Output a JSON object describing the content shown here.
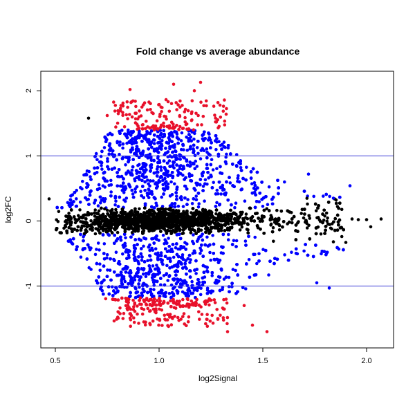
{
  "chart_data": {
    "type": "scatter",
    "title": "Fold change vs average abundance",
    "xlabel": "log2Signal",
    "ylabel": "log2FC",
    "xlim": [
      0.43,
      2.13
    ],
    "ylim": [
      -1.95,
      2.3
    ],
    "x_ticks": [
      0.5,
      1.0,
      1.5,
      2.0
    ],
    "x_tick_labels": [
      "0.5",
      "1.0",
      "1.5",
      "2.0"
    ],
    "y_ticks": [
      -1,
      0,
      1,
      2
    ],
    "y_tick_labels": [
      "-1",
      "0",
      "1",
      "2"
    ],
    "grid": false,
    "reference_lines": [
      {
        "axis": "y",
        "value": 1,
        "color": "#3a3ad6"
      },
      {
        "axis": "y",
        "value": -1,
        "color": "#3a3ad6"
      }
    ],
    "series_colors": {
      "unchanged": "#000000",
      "moderate": "#0000ff",
      "strong": "#e8102a"
    },
    "outliers": [
      {
        "x": 0.66,
        "y": 1.58,
        "group": "unchanged"
      },
      {
        "x": 0.47,
        "y": 0.34,
        "group": "unchanged"
      },
      {
        "x": 2.07,
        "y": 0.03,
        "group": "unchanged"
      },
      {
        "x": 2.0,
        "y": 0.02,
        "group": "unchanged"
      },
      {
        "x": 2.02,
        "y": -0.09,
        "group": "unchanged"
      },
      {
        "x": 1.93,
        "y": 0.03,
        "group": "unchanged"
      },
      {
        "x": 1.96,
        "y": 0.02,
        "group": "unchanged"
      },
      {
        "x": 1.86,
        "y": 0.22,
        "group": "unchanged"
      },
      {
        "x": 1.78,
        "y": -0.2,
        "group": "unchanged"
      },
      {
        "x": 1.84,
        "y": -0.32,
        "group": "unchanged"
      },
      {
        "x": 1.9,
        "y": -0.33,
        "group": "unchanged"
      },
      {
        "x": 1.92,
        "y": 0.54,
        "group": "moderate"
      },
      {
        "x": 1.84,
        "y": 0.35,
        "group": "moderate"
      },
      {
        "x": 1.82,
        "y": -1.03,
        "group": "moderate"
      },
      {
        "x": 1.76,
        "y": -0.95,
        "group": "moderate"
      },
      {
        "x": 1.72,
        "y": 0.72,
        "group": "moderate"
      },
      {
        "x": 1.07,
        "y": 2.1,
        "group": "strong"
      },
      {
        "x": 1.2,
        "y": 2.13,
        "group": "strong"
      },
      {
        "x": 0.86,
        "y": 2.02,
        "group": "strong"
      },
      {
        "x": 1.17,
        "y": 2.0,
        "group": "strong"
      },
      {
        "x": 1.52,
        "y": -1.7,
        "group": "strong"
      },
      {
        "x": 1.45,
        "y": -1.6,
        "group": "strong"
      },
      {
        "x": 1.33,
        "y": -1.7,
        "group": "strong"
      },
      {
        "x": 1.41,
        "y": -1.3,
        "group": "strong"
      },
      {
        "x": 0.75,
        "y": 1.62,
        "group": "strong"
      }
    ]
  }
}
